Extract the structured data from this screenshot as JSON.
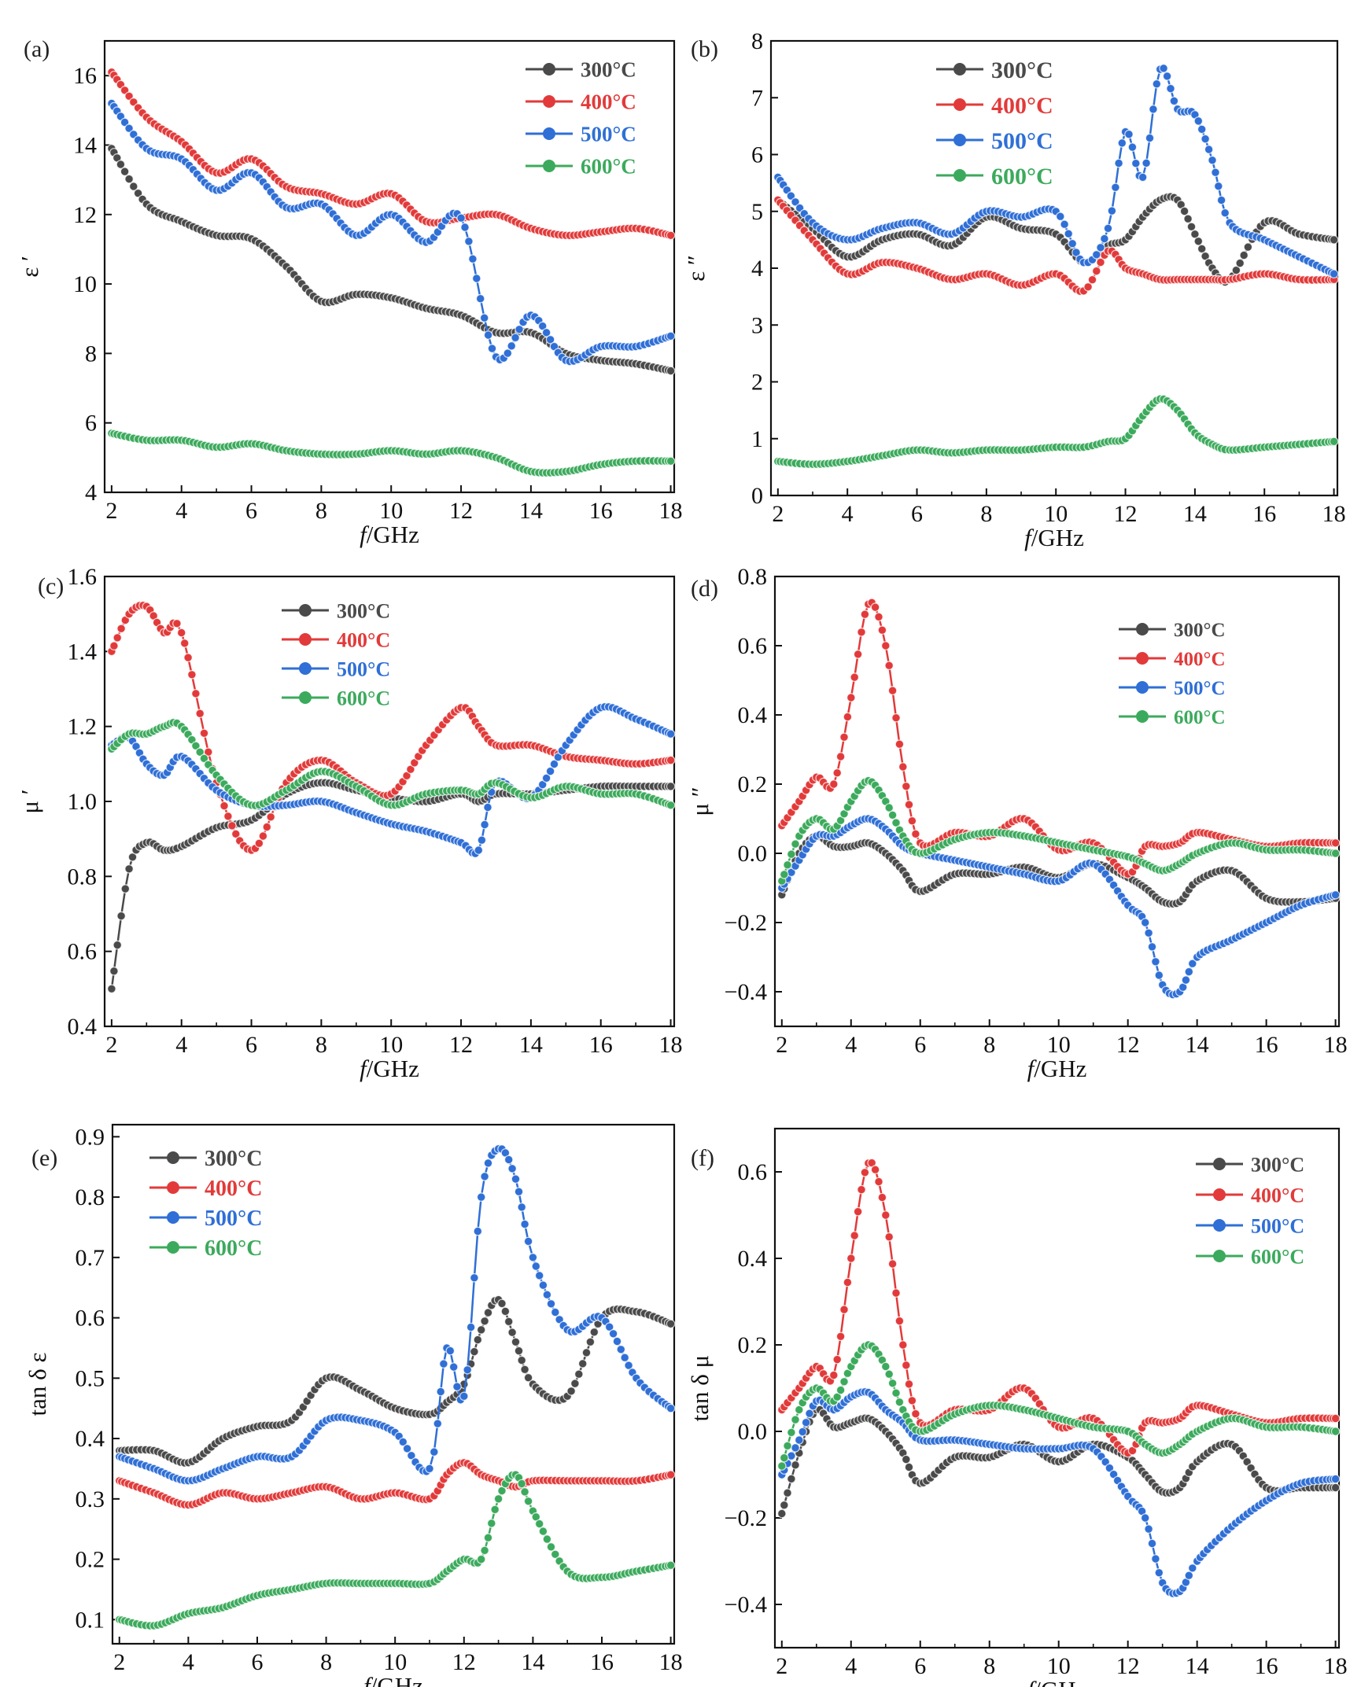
{
  "figure": {
    "background": "#ffffff",
    "axis_color": "#111111"
  },
  "series_colors": {
    "300°C": "#4a4a4a",
    "400°C": "#e23a3a",
    "500°C": "#2f6fd6",
    "600°C": "#3caa5c"
  },
  "chart_data": [
    {
      "panel_label": "(a)",
      "type": "line",
      "xlabel": "f/GHz",
      "ylabel": "ε ′",
      "xlim": [
        1.8,
        18.1
      ],
      "ylim": [
        4,
        17
      ],
      "xticks": [
        "2",
        "4",
        "6",
        "8",
        "10",
        "12",
        "14",
        "16",
        "18"
      ],
      "yticks": [
        "4",
        "6",
        "8",
        "10",
        "12",
        "14",
        "16"
      ],
      "legend_position": "top-right",
      "x": [
        2,
        3,
        4,
        5,
        6,
        7,
        8,
        9,
        10,
        11,
        12,
        13,
        14,
        15,
        16,
        17,
        18
      ],
      "series": [
        {
          "name": "300°C",
          "values": [
            13.9,
            12.3,
            11.8,
            11.4,
            11.3,
            10.5,
            9.5,
            9.7,
            9.6,
            9.3,
            9.1,
            8.6,
            8.6,
            8.0,
            7.8,
            7.7,
            7.5
          ]
        },
        {
          "name": "400°C",
          "values": [
            16.1,
            14.8,
            14.1,
            13.2,
            13.6,
            12.8,
            12.6,
            12.3,
            12.6,
            11.8,
            11.9,
            12.0,
            11.6,
            11.4,
            11.5,
            11.6,
            11.4
          ]
        },
        {
          "name": "500°C",
          "values": [
            15.2,
            13.9,
            13.6,
            12.7,
            13.2,
            12.2,
            12.3,
            11.4,
            12.0,
            11.2,
            11.9,
            7.9,
            9.1,
            7.8,
            8.2,
            8.2,
            8.5
          ]
        },
        {
          "name": "600°C",
          "values": [
            5.7,
            5.5,
            5.5,
            5.3,
            5.4,
            5.2,
            5.1,
            5.1,
            5.2,
            5.1,
            5.2,
            5.0,
            4.6,
            4.6,
            4.8,
            4.9,
            4.9
          ]
        }
      ]
    },
    {
      "panel_label": "(b)",
      "type": "line",
      "xlabel": "f/GHz",
      "ylabel": "ε ″",
      "xlim": [
        1.8,
        18.1
      ],
      "ylim": [
        0,
        8
      ],
      "xticks": [
        "2",
        "4",
        "6",
        "8",
        "10",
        "12",
        "14",
        "16",
        "18"
      ],
      "yticks": [
        "0",
        "1",
        "2",
        "3",
        "4",
        "5",
        "6",
        "7",
        "8"
      ],
      "legend_position": "top-left",
      "x": [
        2,
        3,
        4,
        5,
        6,
        7,
        8,
        9,
        10,
        10.8,
        11.5,
        12,
        12.5,
        13,
        13.5,
        14,
        14.5,
        15,
        16,
        17,
        18
      ],
      "series": [
        {
          "name": "300°C",
          "values": [
            5.2,
            4.7,
            4.2,
            4.5,
            4.6,
            4.4,
            4.9,
            4.7,
            4.6,
            4.1,
            4.4,
            4.5,
            4.9,
            5.2,
            5.2,
            4.6,
            4.0,
            3.8,
            4.8,
            4.6,
            4.5
          ]
        },
        {
          "name": "400°C",
          "values": [
            5.2,
            4.5,
            3.9,
            4.1,
            4.0,
            3.8,
            3.9,
            3.7,
            3.9,
            3.6,
            4.3,
            4.0,
            3.9,
            3.8,
            3.8,
            3.8,
            3.8,
            3.8,
            3.9,
            3.8,
            3.8
          ]
        },
        {
          "name": "500°C",
          "values": [
            5.6,
            4.8,
            4.5,
            4.7,
            4.8,
            4.6,
            5.0,
            4.9,
            5.0,
            4.1,
            4.7,
            6.4,
            5.6,
            7.5,
            6.8,
            6.7,
            5.9,
            4.8,
            4.5,
            4.2,
            3.9
          ]
        },
        {
          "name": "600°C",
          "values": [
            0.6,
            0.55,
            0.6,
            0.7,
            0.8,
            0.75,
            0.8,
            0.8,
            0.85,
            0.85,
            0.95,
            1.0,
            1.4,
            1.7,
            1.5,
            1.1,
            0.9,
            0.8,
            0.85,
            0.9,
            0.95
          ]
        }
      ]
    },
    {
      "panel_label": "(c)",
      "type": "line",
      "xlabel": "f/GHz",
      "ylabel": "μ ′",
      "xlim": [
        1.8,
        18.1
      ],
      "ylim": [
        0.4,
        1.6
      ],
      "xticks": [
        "2",
        "4",
        "6",
        "8",
        "10",
        "12",
        "14",
        "16",
        "18"
      ],
      "yticks": [
        "0.4",
        "0.6",
        "0.8",
        "1.0",
        "1.2",
        "1.4",
        "1.6"
      ],
      "legend_position": "top-center",
      "x": [
        2,
        2.5,
        3,
        3.5,
        4,
        5,
        6,
        7,
        8,
        9,
        10,
        11,
        12,
        12.5,
        13,
        14,
        15,
        16,
        17,
        18
      ],
      "series": [
        {
          "name": "300°C",
          "values": [
            0.5,
            0.82,
            0.89,
            0.87,
            0.88,
            0.93,
            0.95,
            1.02,
            1.05,
            1.03,
            1.01,
            1.0,
            1.02,
            1.0,
            1.02,
            1.02,
            1.03,
            1.04,
            1.04,
            1.04
          ]
        },
        {
          "name": "400°C",
          "values": [
            1.4,
            1.5,
            1.52,
            1.45,
            1.45,
            1.05,
            0.87,
            1.05,
            1.11,
            1.05,
            1.02,
            1.15,
            1.25,
            1.2,
            1.15,
            1.15,
            1.12,
            1.11,
            1.1,
            1.11
          ]
        },
        {
          "name": "500°C",
          "values": [
            1.15,
            1.17,
            1.1,
            1.07,
            1.12,
            1.03,
            0.99,
            0.99,
            1.0,
            0.97,
            0.94,
            0.92,
            0.89,
            0.87,
            1.05,
            1.01,
            1.15,
            1.25,
            1.22,
            1.18
          ]
        },
        {
          "name": "600°C",
          "values": [
            1.14,
            1.18,
            1.18,
            1.2,
            1.2,
            1.07,
            0.99,
            1.03,
            1.08,
            1.04,
            0.99,
            1.02,
            1.03,
            1.02,
            1.05,
            1.01,
            1.04,
            1.02,
            1.02,
            0.99
          ]
        }
      ]
    },
    {
      "panel_label": "(d)",
      "type": "line",
      "xlabel": "f/GHz",
      "ylabel": "μ ″",
      "xlim": [
        1.8,
        18.1
      ],
      "ylim": [
        -0.5,
        0.8
      ],
      "xticks": [
        "2",
        "4",
        "6",
        "8",
        "10",
        "12",
        "14",
        "16",
        "18"
      ],
      "yticks": [
        "-0.4",
        "-0.2",
        "0.0",
        "0.2",
        "0.4",
        "0.6",
        "0.8"
      ],
      "legend_position": "top-right",
      "x": [
        2,
        2.5,
        3,
        3.5,
        4,
        4.5,
        5,
        5.5,
        6,
        7,
        8,
        9,
        10,
        11,
        12,
        12.5,
        13,
        13.5,
        14,
        15,
        16,
        17,
        18
      ],
      "series": [
        {
          "name": "300°C",
          "values": [
            -0.12,
            0.0,
            0.05,
            0.02,
            0.02,
            0.03,
            0.0,
            -0.05,
            -0.11,
            -0.06,
            -0.06,
            -0.04,
            -0.07,
            -0.03,
            -0.07,
            -0.1,
            -0.14,
            -0.14,
            -0.08,
            -0.05,
            -0.13,
            -0.14,
            -0.13
          ]
        },
        {
          "name": "400°C",
          "values": [
            0.08,
            0.15,
            0.22,
            0.2,
            0.45,
            0.72,
            0.6,
            0.25,
            0.03,
            0.06,
            0.05,
            0.1,
            0.01,
            0.03,
            -0.06,
            0.02,
            0.02,
            0.03,
            0.06,
            0.04,
            0.02,
            0.03,
            0.03
          ]
        },
        {
          "name": "500°C",
          "values": [
            -0.1,
            -0.02,
            0.05,
            0.05,
            0.08,
            0.1,
            0.07,
            0.02,
            0.0,
            -0.02,
            -0.04,
            -0.06,
            -0.08,
            -0.03,
            -0.15,
            -0.2,
            -0.38,
            -0.4,
            -0.3,
            -0.25,
            -0.2,
            -0.15,
            -0.12
          ]
        },
        {
          "name": "600°C",
          "values": [
            -0.08,
            0.05,
            0.1,
            0.07,
            0.15,
            0.21,
            0.15,
            0.05,
            0.0,
            0.04,
            0.06,
            0.05,
            0.03,
            0.01,
            -0.01,
            -0.03,
            -0.05,
            -0.03,
            0.0,
            0.03,
            0.01,
            0.01,
            0.0
          ]
        }
      ]
    },
    {
      "panel_label": "(e)",
      "type": "line",
      "xlabel": "f/GHz",
      "ylabel": "tan δ ε",
      "xlim": [
        1.8,
        18.1
      ],
      "ylim": [
        0.06,
        0.92
      ],
      "xticks": [
        "2",
        "4",
        "6",
        "8",
        "10",
        "12",
        "14",
        "16",
        "18"
      ],
      "yticks": [
        "0.1",
        "0.2",
        "0.3",
        "0.4",
        "0.5",
        "0.6",
        "0.7",
        "0.8",
        "0.9"
      ],
      "legend_position": "top-left",
      "x": [
        2,
        3,
        4,
        5,
        6,
        7,
        8,
        9,
        10,
        11,
        11.5,
        12,
        12.5,
        13,
        13.5,
        14,
        15,
        16,
        17,
        18
      ],
      "series": [
        {
          "name": "300°C",
          "values": [
            0.38,
            0.38,
            0.36,
            0.4,
            0.42,
            0.43,
            0.5,
            0.48,
            0.45,
            0.44,
            0.46,
            0.49,
            0.58,
            0.63,
            0.56,
            0.49,
            0.47,
            0.6,
            0.61,
            0.59
          ]
        },
        {
          "name": "400°C",
          "values": [
            0.33,
            0.31,
            0.29,
            0.31,
            0.3,
            0.31,
            0.32,
            0.3,
            0.31,
            0.3,
            0.34,
            0.36,
            0.34,
            0.33,
            0.32,
            0.33,
            0.33,
            0.33,
            0.33,
            0.34
          ]
        },
        {
          "name": "500°C",
          "values": [
            0.37,
            0.35,
            0.33,
            0.35,
            0.37,
            0.37,
            0.43,
            0.43,
            0.41,
            0.35,
            0.55,
            0.47,
            0.8,
            0.88,
            0.83,
            0.7,
            0.58,
            0.6,
            0.5,
            0.45
          ]
        },
        {
          "name": "600°C",
          "values": [
            0.1,
            0.09,
            0.11,
            0.12,
            0.14,
            0.15,
            0.16,
            0.16,
            0.16,
            0.16,
            0.18,
            0.2,
            0.2,
            0.3,
            0.34,
            0.28,
            0.18,
            0.17,
            0.18,
            0.19
          ]
        }
      ]
    },
    {
      "panel_label": "(f)",
      "type": "line",
      "xlabel": "f/GHz",
      "ylabel": "tan δ μ",
      "xlim": [
        1.8,
        18.1
      ],
      "ylim": [
        -0.5,
        0.7
      ],
      "xticks": [
        "2",
        "4",
        "6",
        "8",
        "10",
        "12",
        "14",
        "16",
        "18"
      ],
      "yticks": [
        "-0.4",
        "-0.2",
        "0.0",
        "0.2",
        "0.4",
        "0.6"
      ],
      "legend_position": "top-right",
      "x": [
        2,
        2.5,
        3,
        3.5,
        4,
        4.5,
        5,
        5.5,
        6,
        7,
        8,
        9,
        10,
        11,
        12,
        12.5,
        13,
        13.5,
        14,
        15,
        16,
        17,
        18
      ],
      "series": [
        {
          "name": "300°C",
          "values": [
            -0.19,
            -0.05,
            0.05,
            0.01,
            0.02,
            0.03,
            0.0,
            -0.05,
            -0.12,
            -0.06,
            -0.06,
            -0.03,
            -0.07,
            -0.03,
            -0.06,
            -0.1,
            -0.14,
            -0.13,
            -0.07,
            -0.03,
            -0.13,
            -0.13,
            -0.13
          ]
        },
        {
          "name": "400°C",
          "values": [
            0.05,
            0.1,
            0.15,
            0.13,
            0.4,
            0.62,
            0.5,
            0.2,
            0.02,
            0.05,
            0.05,
            0.1,
            0.01,
            0.03,
            -0.05,
            0.02,
            0.02,
            0.03,
            0.06,
            0.04,
            0.02,
            0.03,
            0.03
          ]
        },
        {
          "name": "500°C",
          "values": [
            -0.1,
            -0.02,
            0.07,
            0.05,
            0.08,
            0.09,
            0.05,
            0.02,
            -0.02,
            -0.02,
            -0.03,
            -0.04,
            -0.04,
            -0.04,
            -0.15,
            -0.2,
            -0.35,
            -0.37,
            -0.3,
            -0.22,
            -0.16,
            -0.12,
            -0.11
          ]
        },
        {
          "name": "600°C",
          "values": [
            -0.08,
            0.05,
            0.1,
            0.07,
            0.15,
            0.2,
            0.15,
            0.05,
            0.0,
            0.04,
            0.06,
            0.05,
            0.03,
            0.01,
            0.0,
            -0.03,
            -0.05,
            -0.03,
            0.0,
            0.03,
            0.01,
            0.01,
            0.0
          ]
        }
      ]
    }
  ]
}
